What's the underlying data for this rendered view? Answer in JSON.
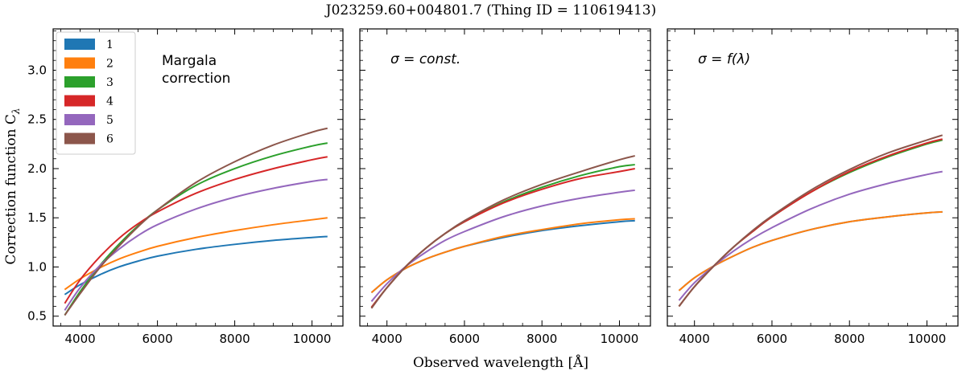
{
  "figure": {
    "title": "J023259.60+004801.7   (Thing ID = 110619413)",
    "xlabel": "Observed wavelength [Å]",
    "ylabel_main": "Correction function C",
    "ylabel_sub": "λ"
  },
  "series_colors": [
    "#1f77b4",
    "#ff7f0e",
    "#2ca02c",
    "#d62728",
    "#9467bd",
    "#8c564b"
  ],
  "legend": {
    "location": "top-left of first panel",
    "entries": [
      "1",
      "2",
      "3",
      "4",
      "5",
      "6"
    ]
  },
  "chart_data": [
    {
      "type": "line",
      "panel": "Margala correction",
      "annotation_lines": [
        "Margala",
        "correction"
      ],
      "xlim": [
        3300,
        10800
      ],
      "ylim": [
        0.4,
        3.42
      ],
      "xticks": [
        4000,
        6000,
        8000,
        10000
      ],
      "yticks": [
        0.5,
        1.0,
        1.5,
        2.0,
        2.5,
        3.0
      ],
      "ytick_labels": [
        "0.5",
        "1.0",
        "1.5",
        "2.0",
        "2.5",
        "3.0"
      ],
      "x": [
        3600,
        4000,
        4500,
        5000,
        5500,
        6000,
        7000,
        8000,
        9000,
        10000,
        10400
      ],
      "series": [
        {
          "name": "1",
          "values": [
            0.72,
            0.82,
            0.92,
            1.0,
            1.06,
            1.11,
            1.18,
            1.23,
            1.27,
            1.3,
            1.31
          ]
        },
        {
          "name": "2",
          "values": [
            0.77,
            0.88,
            0.99,
            1.08,
            1.15,
            1.21,
            1.3,
            1.37,
            1.43,
            1.48,
            1.5
          ]
        },
        {
          "name": "3",
          "values": [
            0.51,
            0.75,
            1.01,
            1.23,
            1.42,
            1.58,
            1.83,
            2.0,
            2.13,
            2.23,
            2.26
          ]
        },
        {
          "name": "4",
          "values": [
            0.63,
            0.87,
            1.1,
            1.29,
            1.44,
            1.56,
            1.75,
            1.89,
            2.0,
            2.09,
            2.12
          ]
        },
        {
          "name": "5",
          "values": [
            0.56,
            0.79,
            1.01,
            1.18,
            1.32,
            1.43,
            1.59,
            1.71,
            1.8,
            1.87,
            1.89
          ]
        },
        {
          "name": "6",
          "values": [
            0.51,
            0.73,
            0.99,
            1.21,
            1.41,
            1.58,
            1.86,
            2.07,
            2.24,
            2.37,
            2.41
          ]
        }
      ]
    },
    {
      "type": "line",
      "panel": "σ = const.",
      "annotation_lines": [
        "σ = const."
      ],
      "xlim": [
        3300,
        10800
      ],
      "ylim": [
        0.4,
        3.42
      ],
      "xticks": [
        4000,
        6000,
        8000,
        10000
      ],
      "yticks": [
        0.5,
        1.0,
        1.5,
        2.0,
        2.5,
        3.0
      ],
      "ytick_labels": [],
      "x": [
        3600,
        4000,
        4500,
        5000,
        5500,
        6000,
        7000,
        8000,
        9000,
        10000,
        10400
      ],
      "series": [
        {
          "name": "1",
          "values": [
            0.74,
            0.87,
            0.99,
            1.08,
            1.15,
            1.21,
            1.3,
            1.37,
            1.42,
            1.46,
            1.47
          ]
        },
        {
          "name": "2",
          "values": [
            0.74,
            0.87,
            0.99,
            1.08,
            1.15,
            1.21,
            1.31,
            1.38,
            1.44,
            1.48,
            1.49
          ]
        },
        {
          "name": "3",
          "values": [
            0.59,
            0.79,
            1.01,
            1.19,
            1.34,
            1.46,
            1.66,
            1.81,
            1.93,
            2.02,
            2.04
          ]
        },
        {
          "name": "4",
          "values": [
            0.59,
            0.79,
            1.01,
            1.19,
            1.34,
            1.46,
            1.65,
            1.79,
            1.9,
            1.97,
            2.0
          ]
        },
        {
          "name": "5",
          "values": [
            0.65,
            0.83,
            1.01,
            1.15,
            1.27,
            1.36,
            1.51,
            1.62,
            1.7,
            1.76,
            1.78
          ]
        },
        {
          "name": "6",
          "values": [
            0.58,
            0.79,
            1.01,
            1.19,
            1.34,
            1.47,
            1.68,
            1.84,
            1.97,
            2.09,
            2.13
          ]
        }
      ]
    },
    {
      "type": "line",
      "panel": "σ = f(λ)",
      "annotation_lines": [
        "σ = f(λ)"
      ],
      "xlim": [
        3300,
        10800
      ],
      "ylim": [
        0.4,
        3.42
      ],
      "xticks": [
        4000,
        6000,
        8000,
        10000
      ],
      "yticks": [
        0.5,
        1.0,
        1.5,
        2.0,
        2.5,
        3.0
      ],
      "ytick_labels": [],
      "x": [
        3600,
        4000,
        4500,
        5000,
        5500,
        6000,
        7000,
        8000,
        9000,
        10000,
        10400
      ],
      "series": [
        {
          "name": "1",
          "values": [
            0.76,
            0.89,
            1.01,
            1.11,
            1.2,
            1.27,
            1.38,
            1.46,
            1.51,
            1.55,
            1.56
          ]
        },
        {
          "name": "2",
          "values": [
            0.76,
            0.89,
            1.01,
            1.11,
            1.2,
            1.27,
            1.38,
            1.46,
            1.51,
            1.55,
            1.56
          ]
        },
        {
          "name": "3",
          "values": [
            0.6,
            0.8,
            1.01,
            1.2,
            1.36,
            1.51,
            1.76,
            1.96,
            2.12,
            2.25,
            2.29
          ]
        },
        {
          "name": "4",
          "values": [
            0.6,
            0.8,
            1.01,
            1.2,
            1.36,
            1.51,
            1.76,
            1.97,
            2.13,
            2.26,
            2.3
          ]
        },
        {
          "name": "5",
          "values": [
            0.66,
            0.84,
            1.01,
            1.16,
            1.29,
            1.4,
            1.59,
            1.74,
            1.85,
            1.94,
            1.97
          ]
        },
        {
          "name": "6",
          "values": [
            0.6,
            0.8,
            1.01,
            1.2,
            1.37,
            1.52,
            1.78,
            1.99,
            2.16,
            2.29,
            2.34
          ]
        }
      ]
    }
  ]
}
